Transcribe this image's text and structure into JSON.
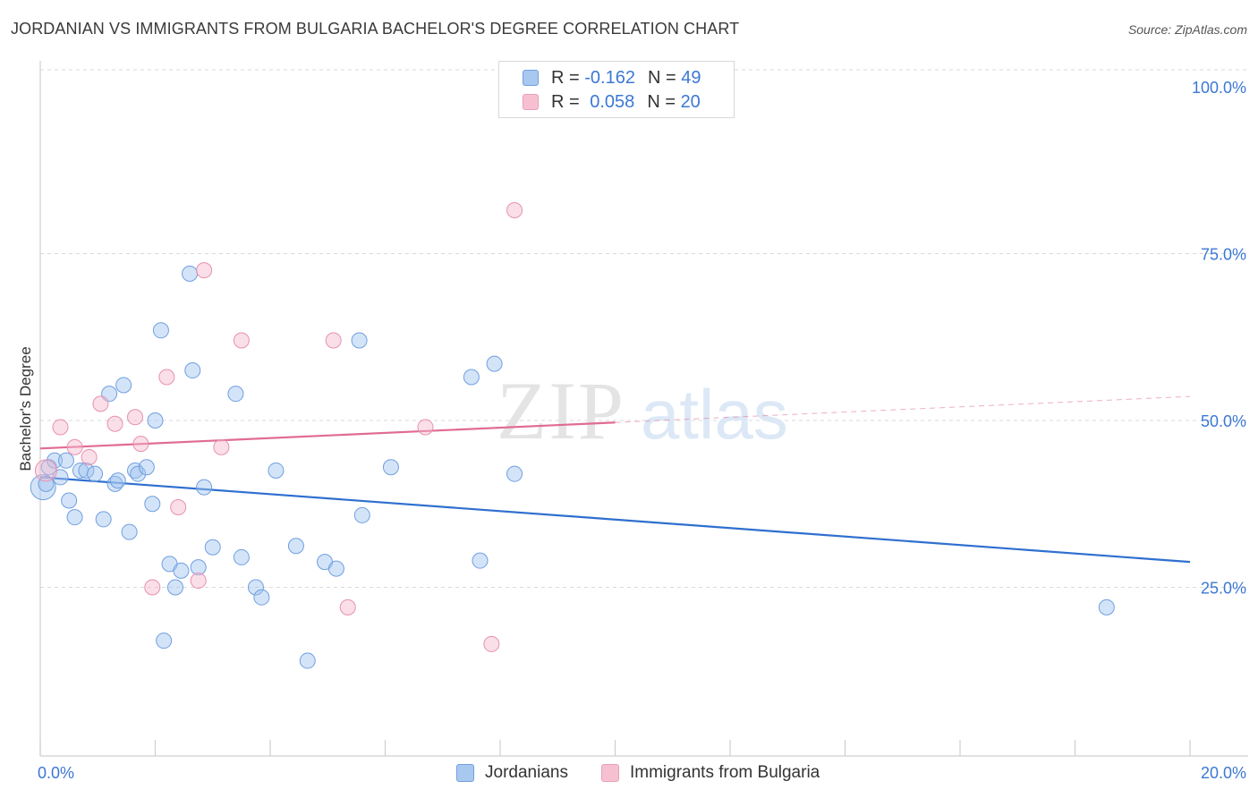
{
  "header": {
    "title": "JORDANIAN VS IMMIGRANTS FROM BULGARIA BACHELOR'S DEGREE CORRELATION CHART",
    "source": "Source: ZipAtlas.com"
  },
  "watermark": {
    "zip": "ZIP",
    "atlas": "atlas"
  },
  "legend": {
    "rows": [
      {
        "r_label": "R =",
        "r_value": "-0.162",
        "n_label": "N =",
        "n_value": "49",
        "color": "#a9c8f0",
        "border": "#6f9fe0"
      },
      {
        "r_label": "R =",
        "r_value": "0.058",
        "n_label": "N =",
        "n_value": "20",
        "color": "#f7c0d0",
        "border": "#e8a0b8"
      }
    ]
  },
  "bottom_legend": {
    "items": [
      {
        "label": "Jordanians",
        "color": "#a9c8f0",
        "border": "#6f9fe0"
      },
      {
        "label": "Immigrants from Bulgaria",
        "color": "#f7c0d0",
        "border": "#e8a0b8"
      }
    ]
  },
  "colors": {
    "blue_point_fill": "rgba(160,195,240,0.45)",
    "blue_point_stroke": "#6f9fe0",
    "blue_line": "#2f6fcf",
    "pink_point_fill": "rgba(245,185,205,0.45)",
    "pink_point_stroke": "#e890b0",
    "pink_line": "#e06b93",
    "tick_label": "#3b78d4",
    "grid": "#d9d9d9"
  },
  "chart_data": {
    "type": "scatter",
    "title": "JORDANIAN VS IMMIGRANTS FROM BULGARIA BACHELOR'S DEGREE CORRELATION CHART",
    "xlabel": "",
    "ylabel": "Bachelor's Degree",
    "xlim": [
      0,
      20
    ],
    "ylim": [
      0,
      102
    ],
    "x_tick_labels": [
      {
        "value": 0,
        "label": "0.0%"
      },
      {
        "value": 20,
        "label": "20.0%"
      }
    ],
    "y_tick_labels": [
      {
        "value": 25,
        "label": "25.0%"
      },
      {
        "value": 50,
        "label": "50.0%"
      },
      {
        "value": 75,
        "label": "75.0%"
      },
      {
        "value": 100,
        "label": "100.0%"
      }
    ],
    "grid": true,
    "legend_position": "top-center",
    "series": [
      {
        "name": "Jordanians",
        "r": -0.162,
        "n": 49,
        "points": [
          [
            0.05,
            40.0
          ],
          [
            0.15,
            43.0
          ],
          [
            0.25,
            44.0
          ],
          [
            0.35,
            41.5
          ],
          [
            0.45,
            44.0
          ],
          [
            0.5,
            38.0
          ],
          [
            0.6,
            35.5
          ],
          [
            0.7,
            42.5
          ],
          [
            0.8,
            42.5
          ],
          [
            0.95,
            42.0
          ],
          [
            1.1,
            35.2
          ],
          [
            1.2,
            54.0
          ],
          [
            1.3,
            40.5
          ],
          [
            1.35,
            41.0
          ],
          [
            1.45,
            55.3
          ],
          [
            1.55,
            33.3
          ],
          [
            1.65,
            42.5
          ],
          [
            1.7,
            42.0
          ],
          [
            1.85,
            43.0
          ],
          [
            1.95,
            37.5
          ],
          [
            2.0,
            50.0
          ],
          [
            2.1,
            63.5
          ],
          [
            2.15,
            17.0
          ],
          [
            2.25,
            28.5
          ],
          [
            2.35,
            25.0
          ],
          [
            2.45,
            27.5
          ],
          [
            2.6,
            72.0
          ],
          [
            2.65,
            57.5
          ],
          [
            2.75,
            28.0
          ],
          [
            2.85,
            40.0
          ],
          [
            3.0,
            31.0
          ],
          [
            3.4,
            54.0
          ],
          [
            3.5,
            29.5
          ],
          [
            3.75,
            25.0
          ],
          [
            3.85,
            23.5
          ],
          [
            4.1,
            42.5
          ],
          [
            4.45,
            31.2
          ],
          [
            4.65,
            14.0
          ],
          [
            4.95,
            28.8
          ],
          [
            5.15,
            27.8
          ],
          [
            5.55,
            62.0
          ],
          [
            5.6,
            35.8
          ],
          [
            6.1,
            43.0
          ],
          [
            7.5,
            56.5
          ],
          [
            7.65,
            29.0
          ],
          [
            7.9,
            58.5
          ],
          [
            8.25,
            42.0
          ],
          [
            18.55,
            22.0
          ],
          [
            0.1,
            40.5
          ]
        ],
        "trend": {
          "x": [
            0,
            20
          ],
          "y": [
            41.5,
            28.8
          ]
        }
      },
      {
        "name": "Immigrants from Bulgaria",
        "r": 0.058,
        "n": 20,
        "points": [
          [
            0.1,
            42.5
          ],
          [
            0.35,
            49.0
          ],
          [
            0.6,
            46.0
          ],
          [
            0.85,
            44.5
          ],
          [
            1.05,
            52.5
          ],
          [
            1.3,
            49.5
          ],
          [
            1.65,
            50.5
          ],
          [
            1.75,
            46.5
          ],
          [
            1.95,
            25.0
          ],
          [
            2.2,
            56.5
          ],
          [
            2.4,
            37.0
          ],
          [
            2.75,
            26.0
          ],
          [
            2.85,
            72.5
          ],
          [
            3.15,
            46.0
          ],
          [
            3.5,
            62.0
          ],
          [
            5.1,
            62.0
          ],
          [
            5.35,
            22.0
          ],
          [
            6.7,
            49.0
          ],
          [
            7.85,
            16.5
          ],
          [
            8.25,
            81.5
          ]
        ],
        "trend": {
          "x": [
            0,
            10
          ],
          "y": [
            45.8,
            49.7
          ]
        },
        "trend_dashed": {
          "x": [
            10,
            20
          ],
          "y": [
            49.7,
            53.6
          ]
        }
      }
    ]
  }
}
